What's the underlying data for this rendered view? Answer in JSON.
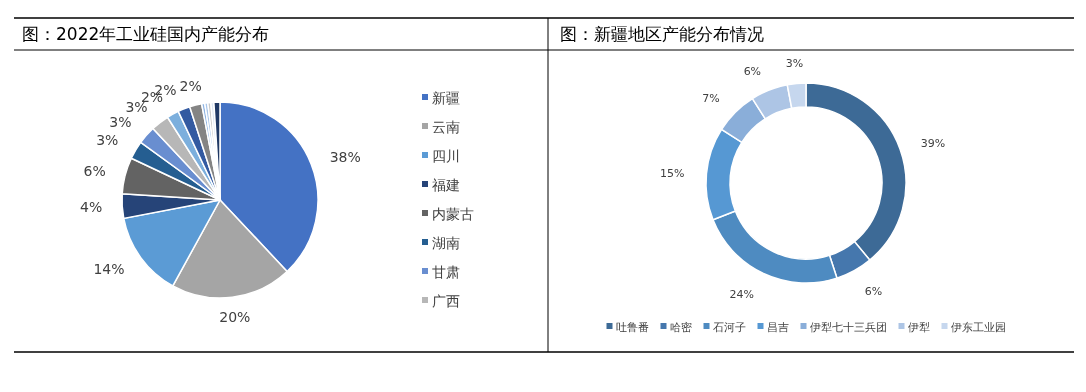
{
  "chart_data": [
    {
      "type": "pie",
      "title": "图：2022年工业硅国内产能分布",
      "legend": "right",
      "categories": [
        "新疆",
        "云南",
        "四川",
        "福建",
        "内蒙古",
        "湖南",
        "甘肃",
        "广西",
        null,
        null,
        null,
        null,
        null,
        null,
        null,
        null
      ],
      "values": [
        38,
        20,
        14,
        4,
        6,
        3,
        3,
        3,
        2,
        2,
        2,
        0.5,
        0.5,
        0.5,
        0.5,
        1
      ],
      "value_labels": [
        "38%",
        "20%",
        "14%",
        "4%",
        "6%",
        "3%",
        "3%",
        "3%",
        "2%",
        "2%",
        "2%",
        null,
        null,
        null,
        null,
        null
      ],
      "colors": [
        "#4472c4",
        "#a5a5a5",
        "#5b9bd5",
        "#264478",
        "#636363",
        "#255e91",
        "#698ed0",
        "#b7b7b7",
        "#7cafdd",
        "#335aa1",
        "#848484",
        "#8fb4e3",
        "#a9c6ea",
        "#c9c9c9",
        "#dde7f4",
        "#1f3864"
      ]
    },
    {
      "type": "donut",
      "title": "图：新疆地区产能分布情况",
      "legend": "bottom",
      "categories": [
        "吐鲁番",
        "哈密",
        "石河子",
        "昌吉",
        "伊犁七十三兵团",
        "伊犁",
        "伊东工业园"
      ],
      "values": [
        39,
        6,
        24,
        15,
        7,
        6,
        3
      ],
      "value_labels": [
        "39%",
        "6%",
        "24%",
        "15%",
        "7%",
        "6%",
        "3%"
      ],
      "colors": [
        "#3d6a96",
        "#4577ad",
        "#4e8bc1",
        "#5698d3",
        "#8aaed9",
        "#adc5e5",
        "#c6d7ee"
      ]
    }
  ]
}
